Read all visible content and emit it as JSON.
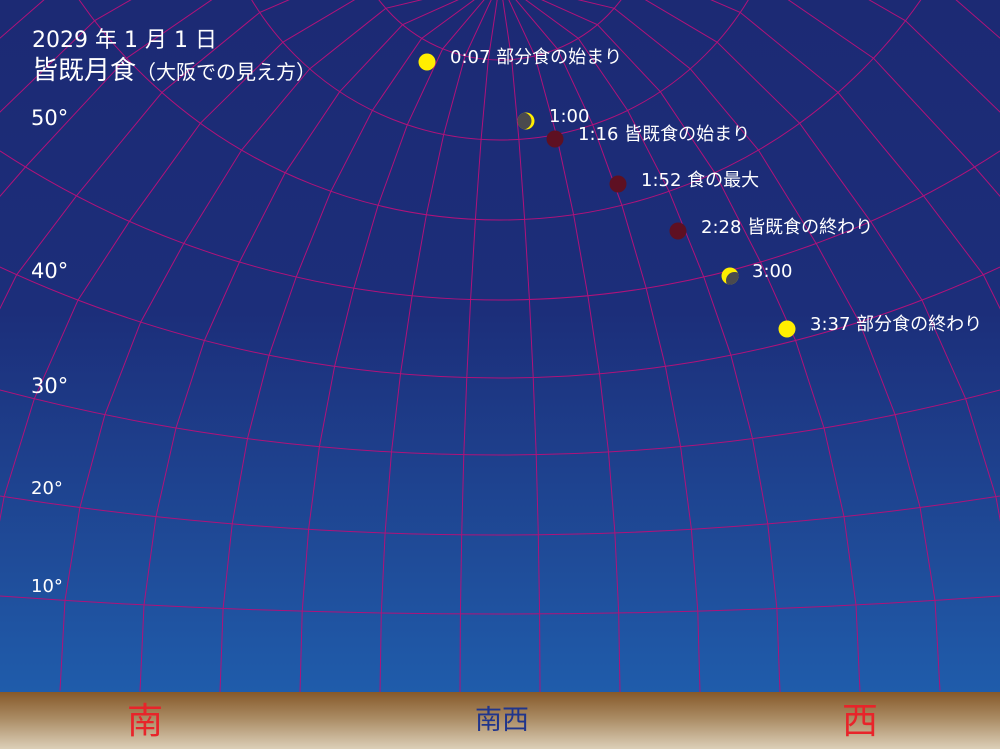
{
  "title": {
    "date": "2029 年 1 月 1 日",
    "main": "皆既月食",
    "sub": "（大阪での見え方）"
  },
  "altitude_labels": [
    "50°",
    "40°",
    "30°",
    "20°",
    "10°"
  ],
  "directions": {
    "south": "南",
    "southwest": "南西",
    "west": "西"
  },
  "events": [
    {
      "label": "0:07 部分食の始まり",
      "phase": "full"
    },
    {
      "label": "1:00",
      "phase": "partial-thin"
    },
    {
      "label": "1:16 皆既食の始まり",
      "phase": "total"
    },
    {
      "label": "1:52 食の最大",
      "phase": "total"
    },
    {
      "label": "2:28 皆既食の終わり",
      "phase": "total"
    },
    {
      "label": "3:00",
      "phase": "partial-half"
    },
    {
      "label": "3:37 部分食の終わり",
      "phase": "full"
    }
  ],
  "colors": {
    "grid": "#b0127a",
    "moon_full": "#ffee00",
    "moon_total": "#5e1022",
    "moon_shadow": "#4a4a4e",
    "direction_main": "#e8242a",
    "direction_sub": "#20358c"
  }
}
